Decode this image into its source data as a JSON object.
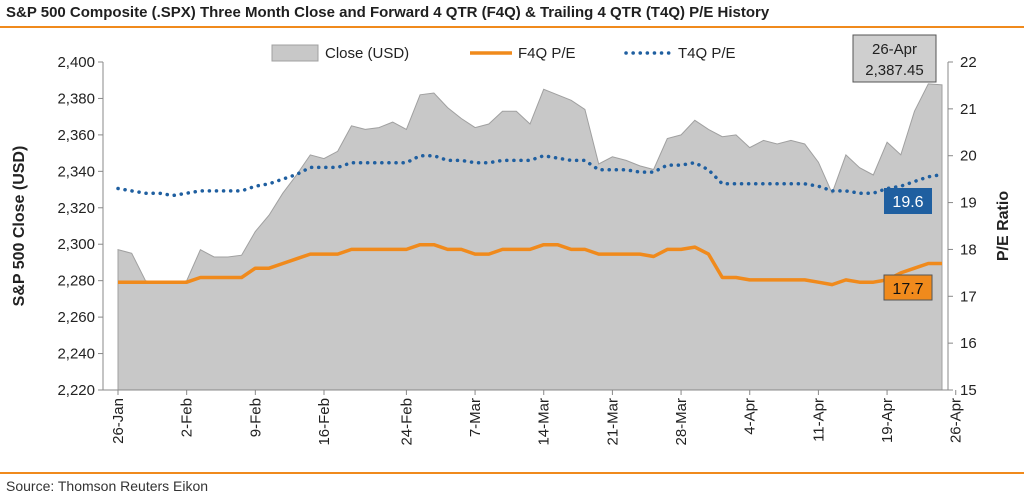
{
  "title": "S&P 500 Composite (.SPX) Three Month Close and Forward 4 QTR (F4Q) & Trailing 4 QTR (T4Q) P/E History",
  "source": "Source: Thomson Reuters Eikon",
  "colors": {
    "area": "#c8c8c8",
    "area_edge": "#a0a0a0",
    "f4q": "#f08a1c",
    "t4q": "#1f5fa0",
    "rule": "#f08a1c"
  },
  "chart_data": {
    "type": "area",
    "title": "",
    "ylabel": "S&P 500 Close (USD)",
    "y2label": "P/E Ratio",
    "ylim": [
      2220,
      2400
    ],
    "y2lim": [
      15,
      22
    ],
    "y_ticks": [
      "2,220",
      "2,240",
      "2,260",
      "2,280",
      "2,300",
      "2,320",
      "2,340",
      "2,360",
      "2,380",
      "2,400"
    ],
    "y2_ticks": [
      "15",
      "16",
      "17",
      "18",
      "19",
      "20",
      "21",
      "22"
    ],
    "x_ticks": [
      {
        "label": "26-Jan",
        "i": 0
      },
      {
        "label": "2-Feb",
        "i": 5
      },
      {
        "label": "9-Feb",
        "i": 10
      },
      {
        "label": "16-Feb",
        "i": 15
      },
      {
        "label": "24-Feb",
        "i": 21
      },
      {
        "label": "7-Mar",
        "i": 26
      },
      {
        "label": "14-Mar",
        "i": 31
      },
      {
        "label": "21-Mar",
        "i": 36
      },
      {
        "label": "28-Mar",
        "i": 41
      },
      {
        "label": "4-Apr",
        "i": 46
      },
      {
        "label": "11-Apr",
        "i": 51
      },
      {
        "label": "19-Apr",
        "i": 56
      },
      {
        "label": "26-Apr",
        "i": 61
      }
    ],
    "grid": false,
    "legend": "top",
    "series": [
      {
        "name": "Close (USD)",
        "type": "area",
        "axis": "left",
        "values": [
          2297,
          2295,
          2280,
          2279,
          2279,
          2280,
          2297,
          2293,
          2293,
          2294,
          2307,
          2316,
          2328,
          2338,
          2349,
          2347,
          2351,
          2365,
          2363,
          2364,
          2367,
          2363,
          2382,
          2383,
          2375,
          2369,
          2364,
          2366,
          2373,
          2373,
          2366,
          2385,
          2382,
          2379,
          2374,
          2344,
          2348,
          2346,
          2343,
          2341,
          2358,
          2360,
          2368,
          2363,
          2359,
          2360,
          2353,
          2357,
          2355,
          2357,
          2355,
          2345,
          2328,
          2349,
          2342,
          2338,
          2356,
          2349,
          2373,
          2388,
          2387.45
        ]
      },
      {
        "name": "F4Q P/E",
        "type": "line",
        "axis": "right",
        "values": [
          17.3,
          17.3,
          17.3,
          17.3,
          17.3,
          17.3,
          17.4,
          17.4,
          17.4,
          17.4,
          17.6,
          17.6,
          17.7,
          17.8,
          17.9,
          17.9,
          17.9,
          18.0,
          18.0,
          18.0,
          18.0,
          18.0,
          18.1,
          18.1,
          18.0,
          18.0,
          17.9,
          17.9,
          18.0,
          18.0,
          18.0,
          18.1,
          18.1,
          18.0,
          18.0,
          17.9,
          17.9,
          17.9,
          17.9,
          17.85,
          18.0,
          18.0,
          18.05,
          17.9,
          17.4,
          17.4,
          17.35,
          17.35,
          17.35,
          17.35,
          17.35,
          17.3,
          17.25,
          17.35,
          17.3,
          17.3,
          17.35,
          17.5,
          17.6,
          17.7,
          17.7
        ]
      },
      {
        "name": "T4Q P/E",
        "type": "line",
        "axis": "right",
        "values": [
          19.3,
          19.25,
          19.2,
          19.2,
          19.15,
          19.2,
          19.25,
          19.25,
          19.25,
          19.25,
          19.35,
          19.4,
          19.5,
          19.6,
          19.75,
          19.75,
          19.75,
          19.85,
          19.85,
          19.85,
          19.85,
          19.85,
          20.0,
          20.0,
          19.9,
          19.9,
          19.85,
          19.85,
          19.9,
          19.9,
          19.9,
          20.0,
          19.95,
          19.9,
          19.9,
          19.7,
          19.7,
          19.7,
          19.65,
          19.65,
          19.8,
          19.8,
          19.85,
          19.7,
          19.4,
          19.4,
          19.4,
          19.4,
          19.4,
          19.4,
          19.4,
          19.35,
          19.25,
          19.25,
          19.2,
          19.2,
          19.3,
          19.35,
          19.45,
          19.55,
          19.6
        ]
      }
    ],
    "annotations": {
      "last_date": "26-Apr",
      "last_close": "2,387.45",
      "t4q_last": "19.6",
      "f4q_last": "17.7"
    }
  }
}
